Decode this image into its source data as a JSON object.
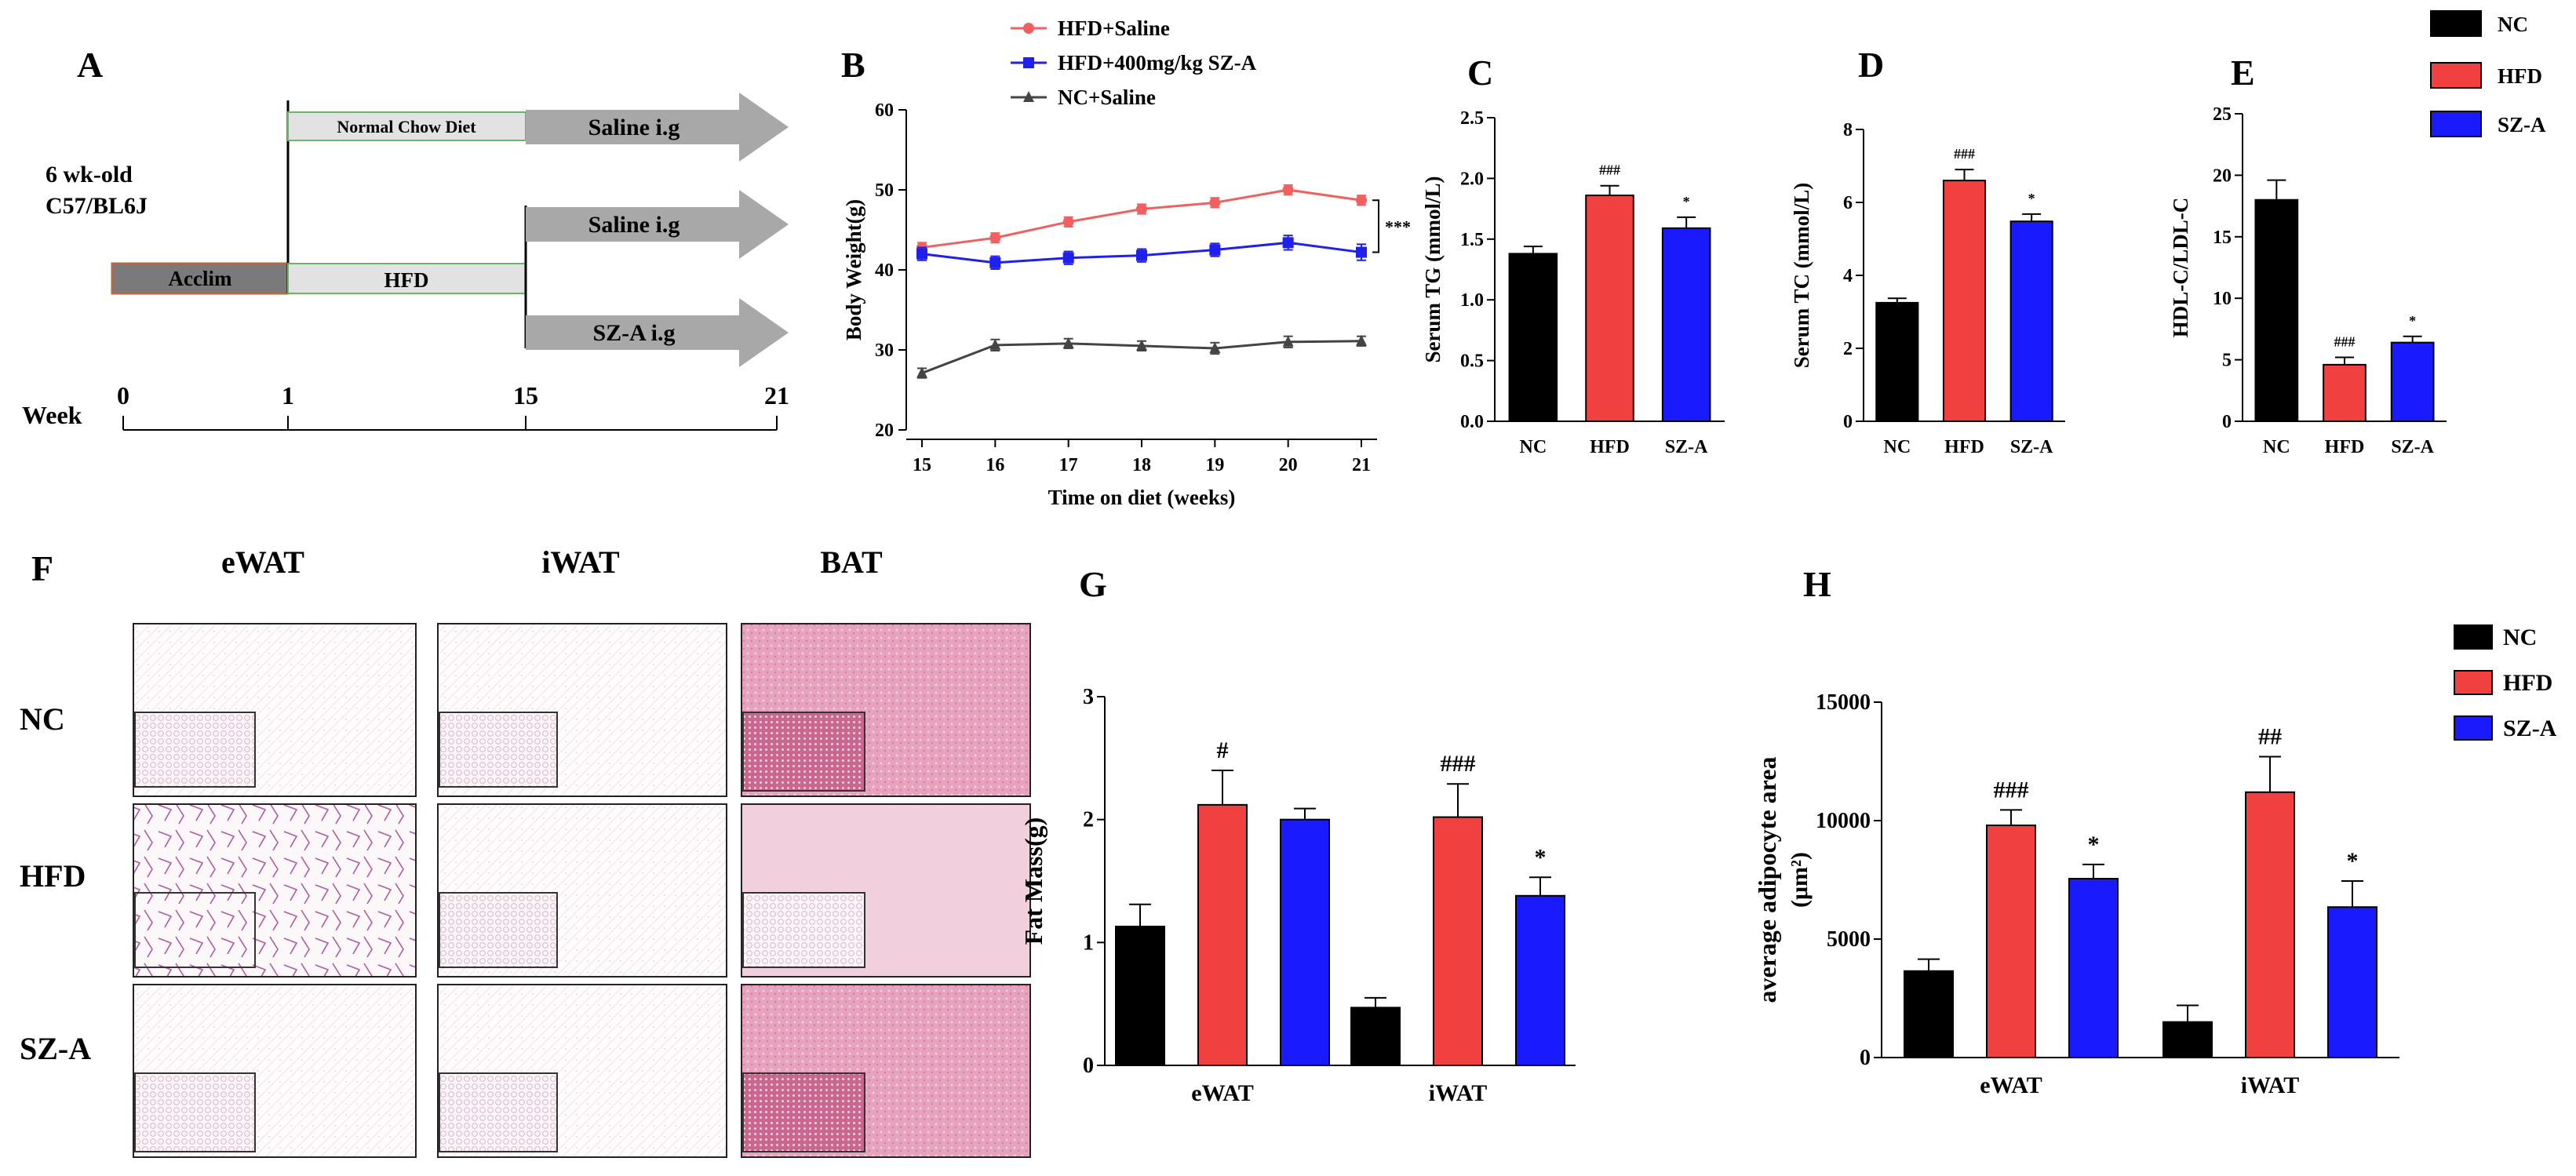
{
  "colors": {
    "nc": "#000000",
    "hfd": "#f04040",
    "sza": "#1a1aff",
    "line_hfd": "#f06060",
    "line_sza": "#2020ee",
    "line_nc": "#444444",
    "gray": "#a8a8a8",
    "acclim": "#7a7a7a",
    "diet_box": "#e2e2e2",
    "diet_border": "#6db36d",
    "bat": "#e8a8c0"
  },
  "panel_labels": {
    "a": "A",
    "b": "B",
    "c": "C",
    "d": "D",
    "e": "E",
    "f": "F",
    "g": "G",
    "h": "H"
  },
  "timeline": {
    "mouse_line1": "6 wk-old",
    "mouse_line2": "C57/BL6J",
    "acclim": "Acclim",
    "normal_chow": "Normal Chow Diet",
    "hfd": "HFD",
    "arrow_top": "Saline i.g",
    "arrow_mid": "Saline i.g",
    "arrow_bottom": "SZ-A i.g",
    "week_label": "Week",
    "weeks": [
      "0",
      "1",
      "15",
      "21"
    ]
  },
  "histology": {
    "columns": [
      "eWAT",
      "iWAT",
      "BAT"
    ],
    "rows": [
      "NC",
      "HFD",
      "SZ-A"
    ]
  },
  "chart_data": [
    {
      "id": "B",
      "type": "line",
      "title": "",
      "xlabel": "Time on diet (weeks)",
      "ylabel": "Body Weight(g)",
      "x": [
        15,
        16,
        17,
        18,
        19,
        20,
        21
      ],
      "xlim": [
        15,
        21
      ],
      "ylim": [
        20,
        60
      ],
      "yticks": [
        20,
        30,
        40,
        50,
        60
      ],
      "series": [
        {
          "name": "HFD+Saline",
          "values": [
            42.8,
            44.0,
            46.0,
            47.6,
            48.4,
            50.0,
            48.7
          ],
          "errors": [
            0.6,
            0.6,
            0.6,
            0.6,
            0.6,
            0.6,
            0.6
          ]
        },
        {
          "name": "HFD+400mg/kg SZ-A",
          "values": [
            42.0,
            40.9,
            41.5,
            41.8,
            42.5,
            43.4,
            42.2
          ],
          "errors": [
            0.8,
            0.8,
            0.8,
            0.8,
            0.8,
            0.9,
            1.0
          ]
        },
        {
          "name": "NC+Saline",
          "values": [
            27.1,
            30.6,
            30.8,
            30.5,
            30.2,
            31.0,
            31.1
          ],
          "errors": [
            0.6,
            0.7,
            0.6,
            0.6,
            0.7,
            0.7,
            0.6
          ]
        }
      ],
      "annotation": "***",
      "legend": "top"
    },
    {
      "id": "C",
      "type": "bar",
      "title": "",
      "xlabel": "",
      "ylabel": "Serum TG (mmol/L)",
      "categories": [
        "NC",
        "HFD",
        "SZ-A"
      ],
      "values": [
        1.38,
        1.86,
        1.59
      ],
      "errors": [
        0.06,
        0.08,
        0.09
      ],
      "ylim": [
        0,
        2.5
      ],
      "yticks": [
        "0.0",
        "0.5",
        "1.0",
        "1.5",
        "2.0",
        "2.5"
      ],
      "sig": [
        "",
        "###",
        "*"
      ]
    },
    {
      "id": "D",
      "type": "bar",
      "title": "",
      "xlabel": "",
      "ylabel": "Serum TC (mmol/L)",
      "categories": [
        "NC",
        "HFD",
        "SZ-A"
      ],
      "values": [
        3.25,
        6.6,
        5.48
      ],
      "errors": [
        0.12,
        0.3,
        0.2
      ],
      "ylim": [
        0,
        8
      ],
      "yticks": [
        "0",
        "2",
        "4",
        "6",
        "8"
      ],
      "sig": [
        "",
        "###",
        "*"
      ]
    },
    {
      "id": "E",
      "type": "bar",
      "title": "",
      "xlabel": "",
      "ylabel": "HDL-C/LDL-C",
      "categories": [
        "NC",
        "HFD",
        "SZ-A"
      ],
      "values": [
        18.0,
        4.6,
        6.4
      ],
      "errors": [
        1.6,
        0.6,
        0.5
      ],
      "ylim": [
        0,
        25
      ],
      "yticks": [
        "0",
        "5",
        "10",
        "15",
        "20",
        "25"
      ],
      "sig": [
        "",
        "###",
        "*"
      ],
      "legend_entries": [
        "NC",
        "HFD",
        "SZ-A"
      ]
    },
    {
      "id": "G",
      "type": "bar",
      "title": "",
      "xlabel": "",
      "ylabel": "Fat Mass(g)",
      "categories": [
        "eWAT",
        "iWAT"
      ],
      "series": [
        {
          "name": "NC",
          "values": [
            1.13,
            0.47
          ],
          "errors": [
            0.18,
            0.08
          ]
        },
        {
          "name": "HFD",
          "values": [
            2.12,
            2.02
          ],
          "errors": [
            0.28,
            0.27
          ]
        },
        {
          "name": "SZ-A",
          "values": [
            2.0,
            1.38
          ],
          "errors": [
            0.09,
            0.15
          ]
        }
      ],
      "ylim": [
        0,
        3
      ],
      "yticks": [
        "0",
        "1",
        "2",
        "3"
      ],
      "sig": [
        [
          "",
          "#",
          ""
        ],
        [
          "",
          "###",
          "*"
        ]
      ]
    },
    {
      "id": "H",
      "type": "bar",
      "title": "",
      "xlabel": "",
      "ylabel_line1": "average adipocyte area",
      "ylabel_line2": "(μm²)",
      "categories": [
        "eWAT",
        "iWAT"
      ],
      "series": [
        {
          "name": "NC",
          "values": [
            3650,
            1500
          ],
          "errors": [
            500,
            700
          ]
        },
        {
          "name": "HFD",
          "values": [
            9800,
            11200
          ],
          "errors": [
            650,
            1500
          ]
        },
        {
          "name": "SZ-A",
          "values": [
            7550,
            6350
          ],
          "errors": [
            600,
            1100
          ]
        }
      ],
      "ylim": [
        0,
        15000
      ],
      "yticks": [
        "0",
        "5000",
        "10000",
        "15000"
      ],
      "sig": [
        [
          "",
          "###",
          "*"
        ],
        [
          "",
          "##",
          "*"
        ]
      ],
      "legend_entries": [
        "NC",
        "HFD",
        "SZ-A"
      ]
    }
  ]
}
